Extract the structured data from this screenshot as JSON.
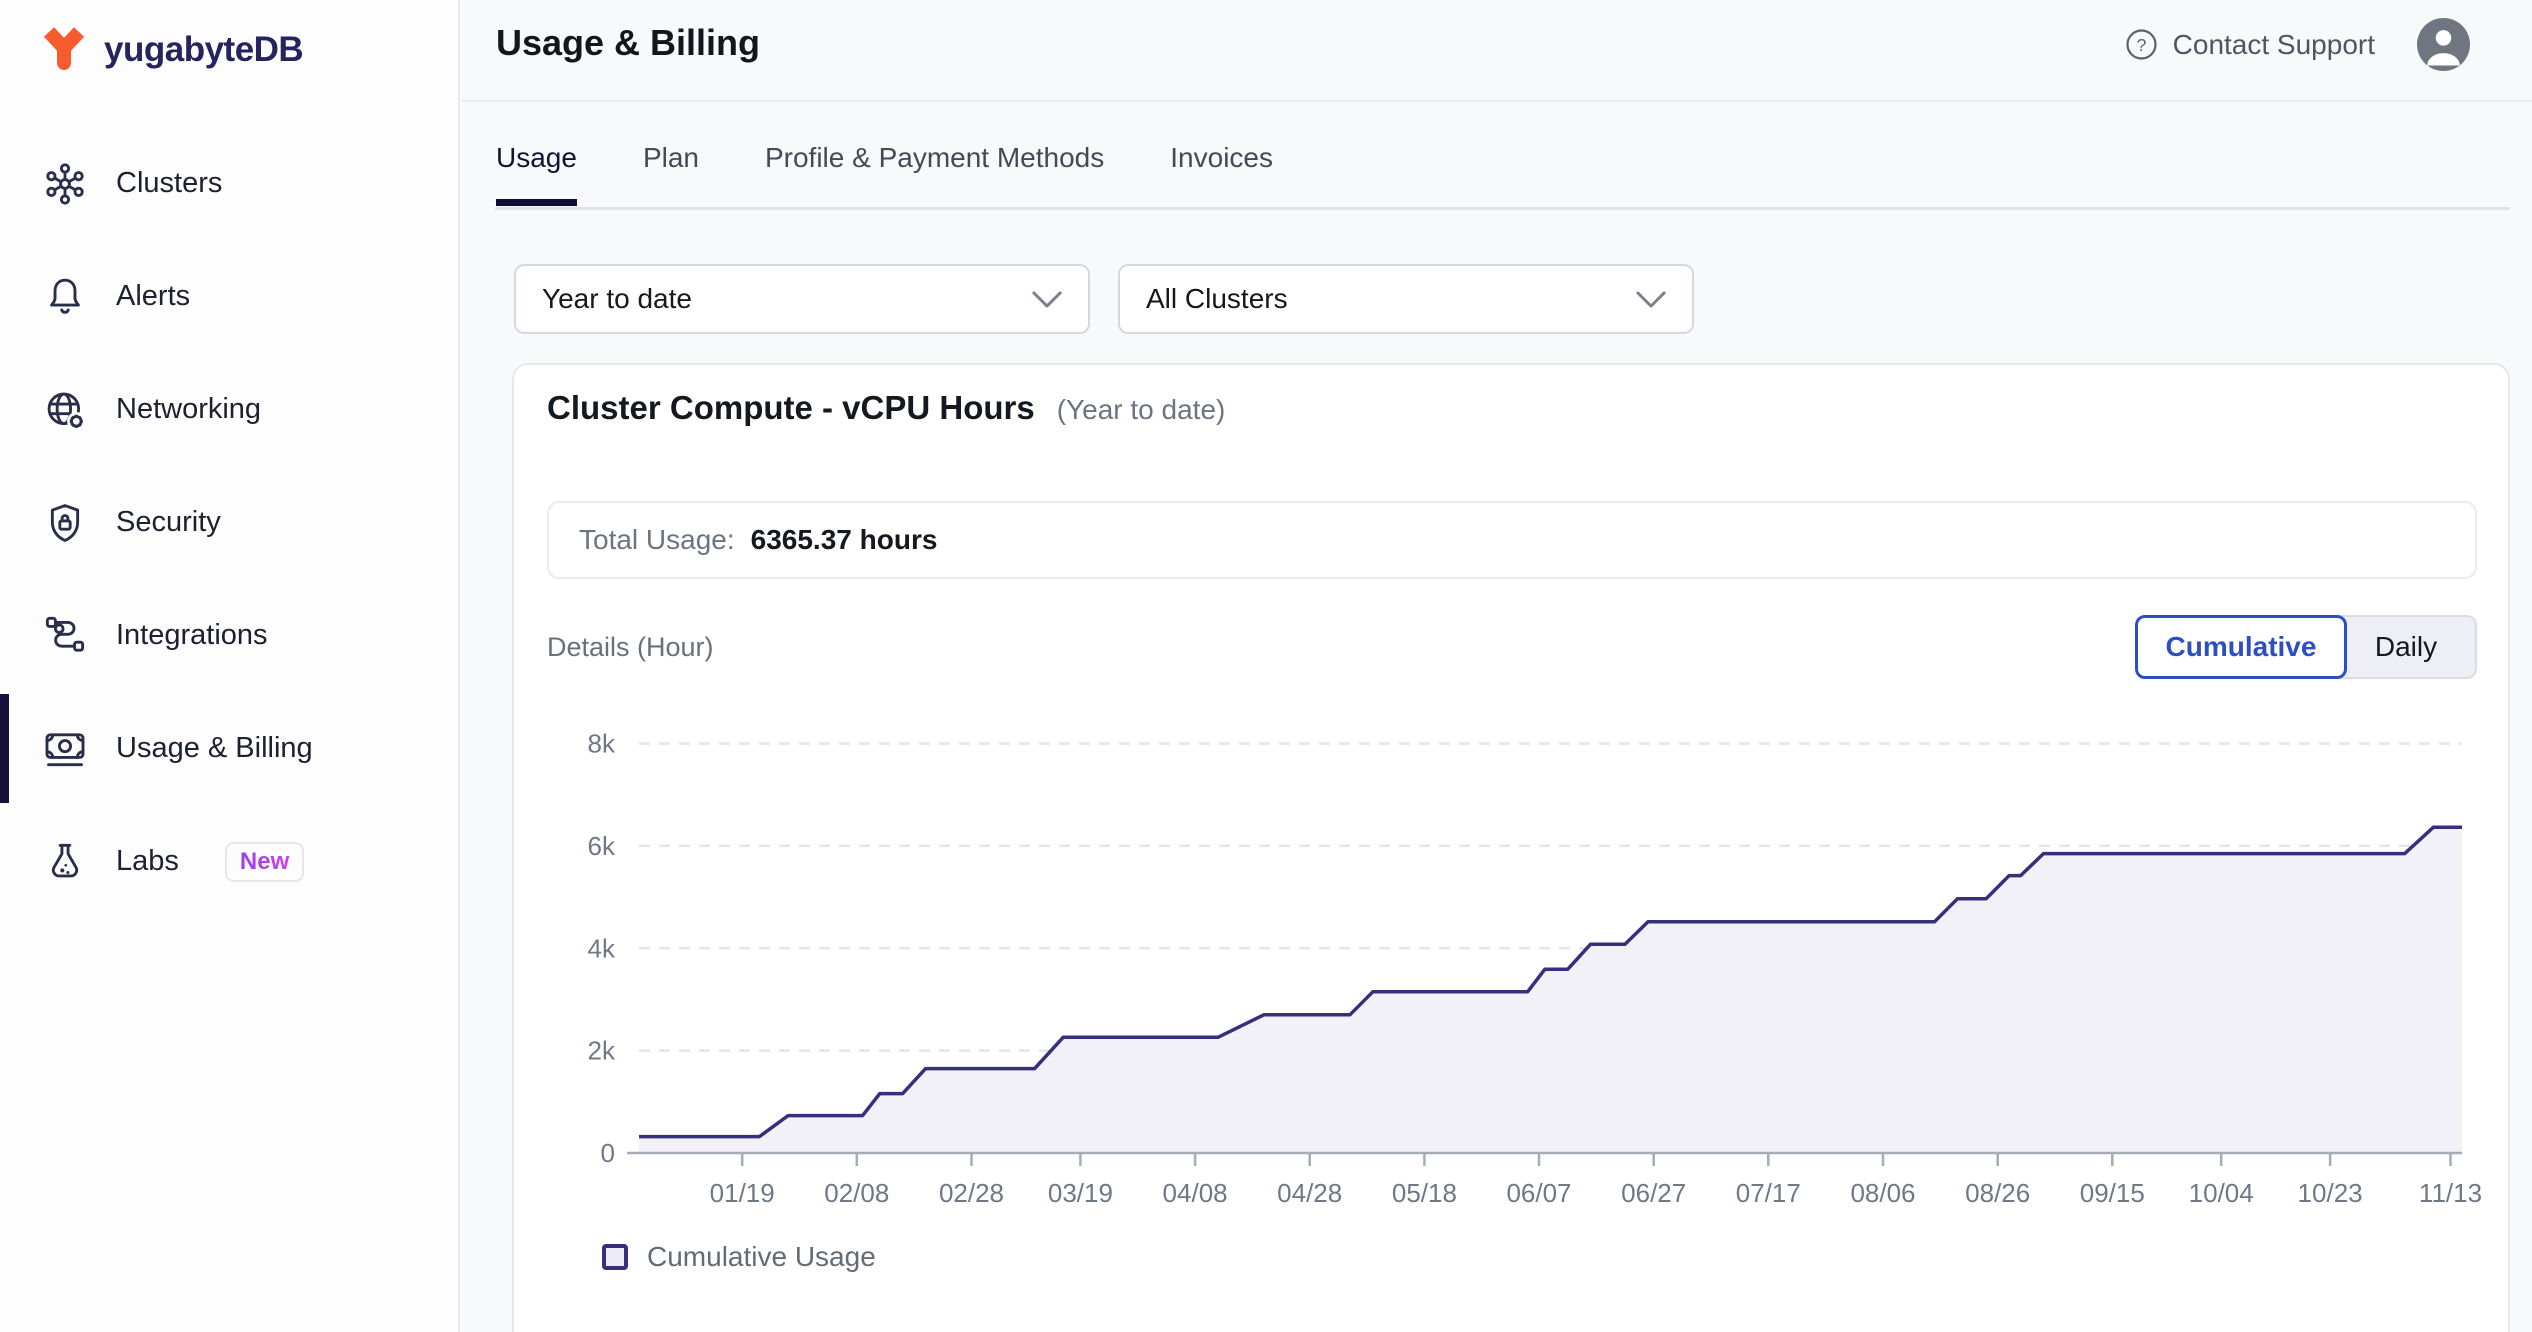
{
  "colors": {
    "accent_navy": "#17123b",
    "brand_orange": "#f75c2f",
    "active_blue": "#2e4fc3",
    "chart_line": "#34307c",
    "chart_fill": "#f2f1f8",
    "badge_gradient_start": "#8b3ff0",
    "badge_gradient_end": "#e042d8"
  },
  "sidebar": {
    "logo_text": "yugabyteDB",
    "items": [
      {
        "label": "Clusters",
        "icon": "clusters-icon",
        "active": false
      },
      {
        "label": "Alerts",
        "icon": "alerts-icon",
        "active": false
      },
      {
        "label": "Networking",
        "icon": "networking-icon",
        "active": false
      },
      {
        "label": "Security",
        "icon": "security-icon",
        "active": false
      },
      {
        "label": "Integrations",
        "icon": "integrations-icon",
        "active": false
      },
      {
        "label": "Usage & Billing",
        "icon": "usage-billing-icon",
        "active": true
      },
      {
        "label": "Labs",
        "icon": "labs-icon",
        "active": false,
        "badge": "New"
      }
    ]
  },
  "header": {
    "title": "Usage & Billing",
    "support_label": "Contact Support"
  },
  "tabs": {
    "items": [
      {
        "label": "Usage",
        "active": true
      },
      {
        "label": "Plan",
        "active": false
      },
      {
        "label": "Profile & Payment Methods",
        "active": false
      },
      {
        "label": "Invoices",
        "active": false
      }
    ]
  },
  "filters": {
    "time_range": "Year to date",
    "clusters": "All Clusters"
  },
  "usage_card": {
    "title": "Cluster Compute - vCPU Hours",
    "subtitle": "(Year to date)",
    "total_label": "Total Usage:",
    "total_value": "6365.37 hours",
    "details_label": "Details (Hour)",
    "toggle": {
      "cumulative": "Cumulative",
      "daily": "Daily"
    },
    "legend_label": "Cumulative Usage"
  },
  "chart_data": {
    "type": "area",
    "title": "Cluster Compute - vCPU Hours (Year to date)",
    "total_hours": 6365.37,
    "x_unit": "day of year, ticks shown as MM/DD",
    "x_domain": [
      0,
      318
    ],
    "x_ticks": [
      {
        "day": 18,
        "label": "01/19"
      },
      {
        "day": 38,
        "label": "02/08"
      },
      {
        "day": 58,
        "label": "02/28"
      },
      {
        "day": 77,
        "label": "03/19"
      },
      {
        "day": 97,
        "label": "04/08"
      },
      {
        "day": 117,
        "label": "04/28"
      },
      {
        "day": 137,
        "label": "05/18"
      },
      {
        "day": 157,
        "label": "06/07"
      },
      {
        "day": 177,
        "label": "06/27"
      },
      {
        "day": 197,
        "label": "07/17"
      },
      {
        "day": 217,
        "label": "08/06"
      },
      {
        "day": 237,
        "label": "08/26"
      },
      {
        "day": 257,
        "label": "09/15"
      },
      {
        "day": 276,
        "label": "10/04"
      },
      {
        "day": 295,
        "label": "10/23"
      },
      {
        "day": 316,
        "label": "11/13"
      }
    ],
    "ylim": [
      0,
      8500
    ],
    "y_ticks": [
      {
        "value": 0,
        "label": "0"
      },
      {
        "value": 2000,
        "label": "2k"
      },
      {
        "value": 4000,
        "label": "4k"
      },
      {
        "value": 6000,
        "label": "6k"
      },
      {
        "value": 8000,
        "label": "8k"
      }
    ],
    "grid": "dashed-horizontal",
    "legend_position": "bottom-left",
    "line_color": "#34307c",
    "fill_color": "#f2f1f8",
    "series": [
      {
        "name": "Cumulative Usage",
        "points": [
          [
            0,
            320
          ],
          [
            21,
            320
          ],
          [
            26,
            730
          ],
          [
            39,
            730
          ],
          [
            42,
            1160
          ],
          [
            46,
            1160
          ],
          [
            50,
            1650
          ],
          [
            69,
            1650
          ],
          [
            74,
            2260
          ],
          [
            101,
            2260
          ],
          [
            109,
            2700
          ],
          [
            124,
            2700
          ],
          [
            128,
            3150
          ],
          [
            155,
            3150
          ],
          [
            158,
            3590
          ],
          [
            162,
            3590
          ],
          [
            166,
            4080
          ],
          [
            172,
            4080
          ],
          [
            176,
            4520
          ],
          [
            226,
            4520
          ],
          [
            230,
            4970
          ],
          [
            235,
            4970
          ],
          [
            239,
            5420
          ],
          [
            241,
            5420
          ],
          [
            245,
            5850
          ],
          [
            308,
            5850
          ],
          [
            313,
            6365
          ],
          [
            318,
            6365
          ]
        ]
      }
    ]
  }
}
